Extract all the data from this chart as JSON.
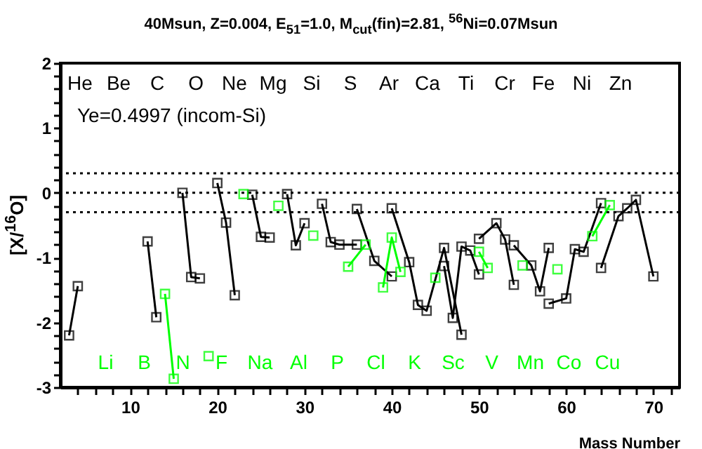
{
  "chart_data": {
    "type": "line",
    "title": "40Msun, Z=0.004, E$_{51}$=1.0, M$_{cut}$(fin)=2.81, $^{56}$Ni=0.07Msun",
    "xlabel": "Mass Number",
    "ylabel": "[X/$^{16}$O]",
    "xlim": [
      2,
      73
    ],
    "ylim": [
      -3,
      2
    ],
    "xticks": [
      {
        "value": 4,
        "label": null
      },
      {
        "value": 6,
        "label": null
      },
      {
        "value": 8,
        "label": null
      },
      10,
      {
        "value": 12,
        "label": null
      },
      {
        "value": 14,
        "label": null
      },
      {
        "value": 16,
        "label": null
      },
      {
        "value": 18,
        "label": null
      },
      20,
      {
        "value": 22,
        "label": null
      },
      {
        "value": 24,
        "label": null
      },
      {
        "value": 26,
        "label": null
      },
      {
        "value": 28,
        "label": null
      },
      30,
      {
        "value": 32,
        "label": null
      },
      {
        "value": 34,
        "label": null
      },
      {
        "value": 36,
        "label": null
      },
      {
        "value": 38,
        "label": null
      },
      40,
      {
        "value": 42,
        "label": null
      },
      {
        "value": 44,
        "label": null
      },
      {
        "value": 46,
        "label": null
      },
      {
        "value": 48,
        "label": null
      },
      50,
      {
        "value": 52,
        "label": null
      },
      {
        "value": 54,
        "label": null
      },
      {
        "value": 56,
        "label": null
      },
      {
        "value": 58,
        "label": null
      },
      60,
      {
        "value": 62,
        "label": null
      },
      {
        "value": 64,
        "label": null
      },
      {
        "value": 66,
        "label": null
      },
      {
        "value": 68,
        "label": null
      },
      70,
      {
        "value": 72,
        "label": null
      }
    ],
    "yticks": [
      -3,
      {
        "value": -2.8,
        "label": null
      },
      {
        "value": -2.6,
        "label": null
      },
      {
        "value": -2.4,
        "label": null
      },
      {
        "value": -2.2,
        "label": null
      },
      -2,
      {
        "value": -1.8,
        "label": null
      },
      {
        "value": -1.6,
        "label": null
      },
      {
        "value": -1.4,
        "label": null
      },
      {
        "value": -1.2,
        "label": null
      },
      -1,
      {
        "value": -0.8,
        "label": null
      },
      {
        "value": -0.6,
        "label": null
      },
      {
        "value": -0.4,
        "label": null
      },
      {
        "value": -0.2,
        "label": null
      },
      0,
      {
        "value": 0.2,
        "label": null
      },
      {
        "value": 0.4,
        "label": null
      },
      {
        "value": 0.6,
        "label": null
      },
      {
        "value": 0.8,
        "label": null
      },
      1,
      {
        "value": 1.2,
        "label": null
      },
      {
        "value": 1.4,
        "label": null
      },
      {
        "value": 1.6,
        "label": null
      },
      {
        "value": 1.8,
        "label": null
      },
      2
    ],
    "marker": "square",
    "line_style": "solid",
    "series": [
      {
        "color": "#000000",
        "x": [
          3,
          4,
          null,
          12,
          13,
          null,
          16,
          17,
          18,
          null,
          20,
          21,
          22,
          null,
          24,
          25,
          26,
          null,
          28,
          29,
          30,
          null,
          32,
          33,
          34,
          36,
          null,
          36,
          38,
          40,
          null,
          40,
          42,
          43,
          44,
          46,
          48,
          null,
          46,
          47,
          48,
          49,
          50,
          null,
          50,
          52,
          53,
          54,
          null,
          54,
          56,
          57,
          58,
          null,
          58,
          60,
          61,
          62,
          64,
          null,
          64,
          66,
          67,
          68,
          70
        ],
        "values": [
          -2.2,
          -1.44,
          null,
          -0.75,
          -1.92,
          null,
          0.0,
          -1.3,
          -1.32,
          null,
          0.15,
          -0.46,
          -1.58,
          null,
          -0.03,
          -0.68,
          -0.69,
          null,
          -0.02,
          -0.81,
          -0.47,
          null,
          -0.17,
          -0.76,
          -0.8,
          -0.8,
          null,
          -0.25,
          -1.05,
          -1.29,
          null,
          -0.24,
          -1.07,
          -1.73,
          -1.82,
          -0.85,
          -2.19,
          null,
          -1.13,
          -1.93,
          -0.83,
          -0.89,
          -1.26,
          null,
          -0.71,
          -0.47,
          -0.72,
          -1.42,
          null,
          -0.81,
          -1.12,
          -1.52,
          -0.85,
          null,
          -1.71,
          -1.63,
          -0.87,
          -0.91,
          -0.16,
          null,
          -1.16,
          -0.36,
          -0.24,
          -0.11,
          -1.29
        ]
      },
      {
        "color": "#00ff00",
        "x": [
          14,
          15,
          null,
          19,
          null,
          23,
          null,
          27,
          null,
          31,
          null,
          35,
          37,
          null,
          39,
          40,
          41,
          null,
          45,
          null,
          50,
          51,
          null,
          55,
          null,
          59,
          null,
          63,
          65
        ],
        "values": [
          -1.56,
          -2.87,
          null,
          -2.52,
          null,
          -0.02,
          null,
          -0.2,
          null,
          -0.66,
          null,
          -1.14,
          -0.8,
          null,
          -1.46,
          -0.69,
          -1.22,
          null,
          -1.31,
          null,
          -0.91,
          -1.16,
          null,
          -1.12,
          null,
          -1.18,
          null,
          -0.67,
          -0.19
        ]
      }
    ],
    "ref_lines": [
      {
        "axis": "y",
        "value": 0.3,
        "line_style": "dotted"
      },
      {
        "axis": "y",
        "value": 0,
        "line_style": "dotted"
      },
      {
        "axis": "y",
        "value": -0.3,
        "line_style": "dotted"
      }
    ],
    "annotations": [
      "Ye=0.4997 (incom-Si)",
      "He",
      "Li",
      "Be",
      "B",
      "C",
      "N",
      "O",
      "F",
      "Ne",
      "Na",
      "Mg",
      "Al",
      "Si",
      "P",
      "S",
      "Cl",
      "Ar",
      "K",
      "Ca",
      "Sc",
      "Ti",
      "V",
      "Cr",
      "Mn",
      "Fe",
      "Co",
      "Ni",
      "Cu",
      "Zn"
    ]
  }
}
